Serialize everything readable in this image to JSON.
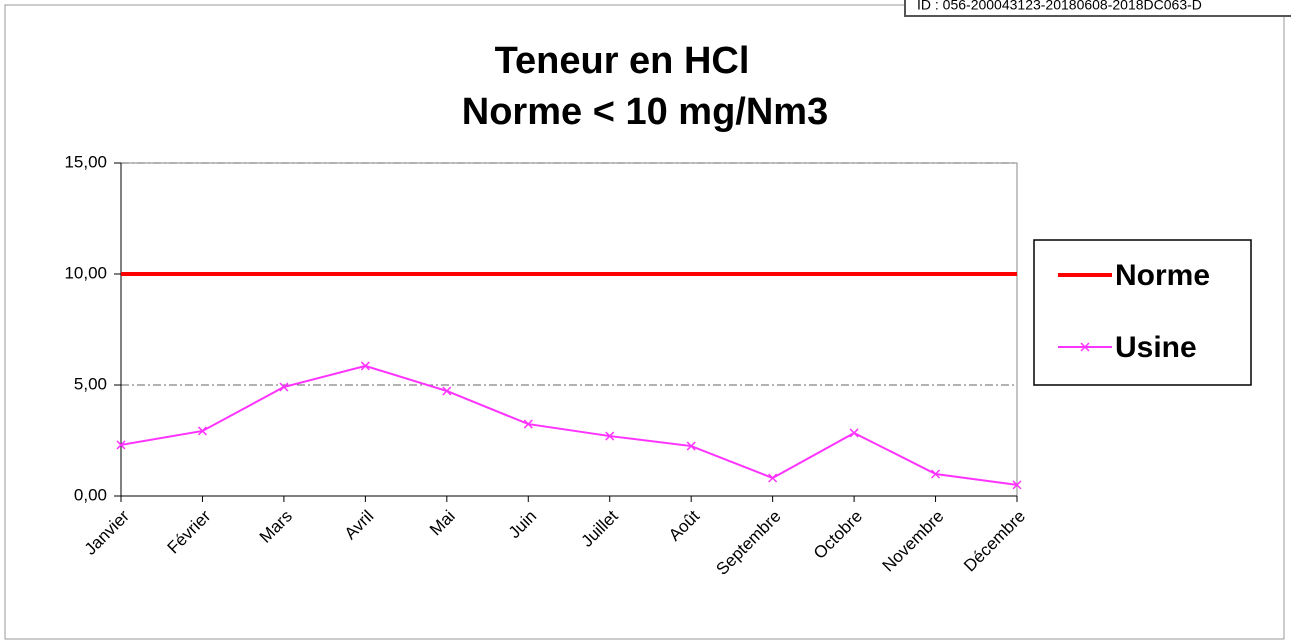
{
  "stamp": "ID : 056-200043123-20180608-2018DC063-D",
  "chart_data": {
    "type": "line",
    "title": "Teneur en HCl",
    "subtitle": "Norme  < 10 mg/Nm3",
    "categories": [
      "Janvier",
      "Février",
      "Mars",
      "Avril",
      "Mai",
      "Juin",
      "Juillet",
      "Août",
      "Septembre",
      "Octobre",
      "Novembre",
      "Décembre"
    ],
    "series": [
      {
        "name": "Norme",
        "color": "#ff0000",
        "values": [
          10,
          10,
          10,
          10,
          10,
          10,
          10,
          10,
          10,
          10,
          10,
          10
        ]
      },
      {
        "name": "Usine",
        "color": "#ff33ff",
        "values": [
          2.3,
          2.93,
          4.91,
          5.86,
          4.73,
          3.24,
          2.7,
          2.25,
          0.81,
          2.84,
          0.99,
          0.5
        ]
      }
    ],
    "ylim": [
      0,
      15
    ],
    "yticks": [
      {
        "value": 0,
        "label": "0,00"
      },
      {
        "value": 5,
        "label": "5,00"
      },
      {
        "value": 10,
        "label": "10,00"
      },
      {
        "value": 15,
        "label": "15,00"
      }
    ],
    "grid": true,
    "legend": "right"
  }
}
